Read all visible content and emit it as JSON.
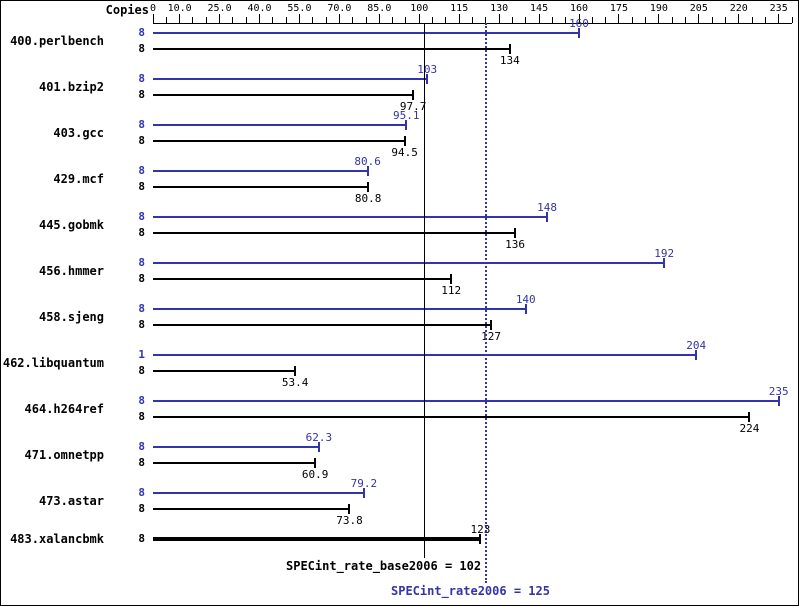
{
  "header": {
    "copies_label": "Copies"
  },
  "chart_data": {
    "type": "bar",
    "orientation": "horizontal",
    "title": "",
    "axis": {
      "min": 0,
      "max": 240,
      "tick_step": 5,
      "labels": [
        "0",
        "10.0",
        "25.0",
        "40.0",
        "55.0",
        "70.0",
        "85.0",
        "100",
        "115",
        "130",
        "145",
        "160",
        "175",
        "190",
        "205",
        "220",
        "235"
      ],
      "label_values": [
        0,
        10,
        25,
        40,
        55,
        70,
        85,
        100,
        115,
        130,
        145,
        160,
        175,
        190,
        205,
        220,
        235
      ]
    },
    "colors": {
      "peak": "#3333aa",
      "base": "#000000"
    },
    "series": [
      {
        "name": "SPECint_rate2006",
        "color": "#3333aa"
      },
      {
        "name": "SPECint_rate_base2006",
        "color": "#000000"
      }
    ],
    "reference_lines": [
      {
        "name": "base",
        "label": "SPECint_rate_base2006 = 102",
        "value": 102,
        "color": "#000000",
        "style": "solid"
      },
      {
        "name": "peak",
        "label": "SPECint_rate2006 = 125",
        "value": 125,
        "color": "#3333aa",
        "style": "dotted"
      }
    ],
    "benchmarks": [
      {
        "name": "400.perlbench",
        "peak": {
          "copies": 8,
          "value": 160,
          "label": "160"
        },
        "base": {
          "copies": 8,
          "value": 134,
          "label": "134"
        }
      },
      {
        "name": "401.bzip2",
        "peak": {
          "copies": 8,
          "value": 103,
          "label": "103"
        },
        "base": {
          "copies": 8,
          "value": 97.7,
          "label": "97.7"
        }
      },
      {
        "name": "403.gcc",
        "peak": {
          "copies": 8,
          "value": 95.1,
          "label": "95.1"
        },
        "base": {
          "copies": 8,
          "value": 94.5,
          "label": "94.5"
        }
      },
      {
        "name": "429.mcf",
        "peak": {
          "copies": 8,
          "value": 80.6,
          "label": "80.6"
        },
        "base": {
          "copies": 8,
          "value": 80.8,
          "label": "80.8"
        }
      },
      {
        "name": "445.gobmk",
        "peak": {
          "copies": 8,
          "value": 148,
          "label": "148"
        },
        "base": {
          "copies": 8,
          "value": 136,
          "label": "136"
        }
      },
      {
        "name": "456.hmmer",
        "peak": {
          "copies": 8,
          "value": 192,
          "label": "192"
        },
        "base": {
          "copies": 8,
          "value": 112,
          "label": "112"
        }
      },
      {
        "name": "458.sjeng",
        "peak": {
          "copies": 8,
          "value": 140,
          "label": "140"
        },
        "base": {
          "copies": 8,
          "value": 127,
          "label": "127"
        }
      },
      {
        "name": "462.libquantum",
        "peak": {
          "copies": 1,
          "value": 204,
          "label": "204"
        },
        "base": {
          "copies": 8,
          "value": 53.4,
          "label": "53.4"
        }
      },
      {
        "name": "464.h264ref",
        "peak": {
          "copies": 8,
          "value": 235,
          "label": "235"
        },
        "base": {
          "copies": 8,
          "value": 224,
          "label": "224"
        }
      },
      {
        "name": "471.omnetpp",
        "peak": {
          "copies": 8,
          "value": 62.3,
          "label": "62.3"
        },
        "base": {
          "copies": 8,
          "value": 60.9,
          "label": "60.9"
        }
      },
      {
        "name": "473.astar",
        "peak": {
          "copies": 8,
          "value": 79.2,
          "label": "79.2"
        },
        "base": {
          "copies": 8,
          "value": 73.8,
          "label": "73.8"
        }
      },
      {
        "name": "483.xalancbmk",
        "single": true,
        "base": {
          "copies": 8,
          "value": 123,
          "label": "123"
        }
      }
    ]
  }
}
